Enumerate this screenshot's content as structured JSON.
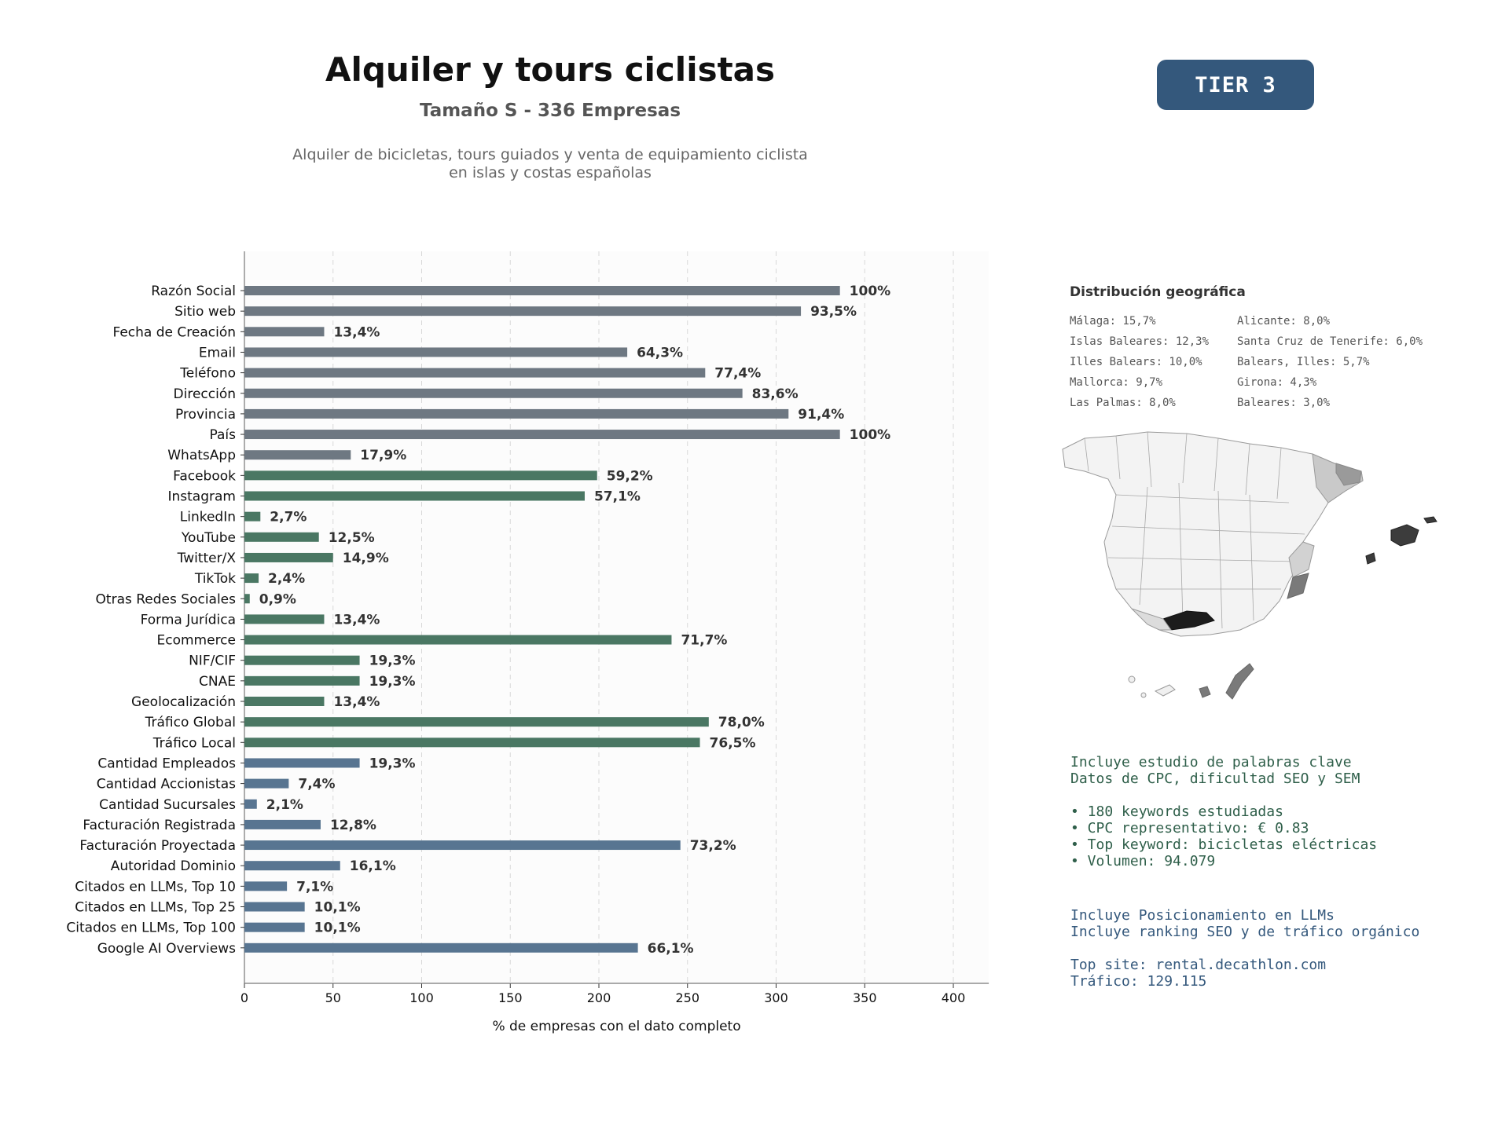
{
  "header": {
    "title": "Alquiler y tours ciclistas",
    "subtitle": "Tamaño S - 336 Empresas",
    "description_lines": [
      "Alquiler de bicicletas, tours guiados y venta de equipamiento ciclista",
      "en islas y costas españolas"
    ],
    "tier_badge": "TIER 3"
  },
  "colors": {
    "basic": "#6e7882",
    "digital": "#4a7763",
    "business": "#587591",
    "badge": "#34587c"
  },
  "chart_data": {
    "type": "bar",
    "orientation": "horizontal",
    "xlabel": "% de empresas con el dato completo",
    "xlim": [
      0,
      420
    ],
    "xticks": [
      0,
      50,
      100,
      150,
      200,
      250,
      300,
      350,
      400
    ],
    "grid": "vertical dashed",
    "categories": [
      "Razón Social",
      "Sitio web",
      "Fecha de Creación",
      "Email",
      "Teléfono",
      "Dirección",
      "Provincia",
      "País",
      "WhatsApp",
      "Facebook",
      "Instagram",
      "LinkedIn",
      "YouTube",
      "Twitter/X",
      "TikTok",
      "Otras Redes Sociales",
      "Forma Jurídica",
      "Ecommerce",
      "NIF/CIF",
      "CNAE",
      "Geolocalización",
      "Tráfico Global",
      "Tráfico Local",
      "Cantidad Empleados",
      "Cantidad Accionistas",
      "Cantidad Sucursales",
      "Facturación Registrada",
      "Facturación Proyectada",
      "Autoridad Dominio",
      "Citados en LLMs, Top 10",
      "Citados en LLMs, Top 25",
      "Citados en LLMs, Top 100",
      "Google AI Overviews"
    ],
    "values": [
      336,
      314,
      45,
      216,
      260,
      281,
      307,
      336,
      60,
      199,
      192,
      9,
      42,
      50,
      8,
      3,
      45,
      241,
      65,
      65,
      45,
      262,
      257,
      65,
      25,
      7,
      43,
      246,
      54,
      24,
      34,
      34,
      222
    ],
    "labels": [
      "100%",
      "93,5%",
      "13,4%",
      "64,3%",
      "77,4%",
      "83,6%",
      "91,4%",
      "100%",
      "17,9%",
      "59,2%",
      "57,1%",
      "2,7%",
      "12,5%",
      "14,9%",
      "2,4%",
      "0,9%",
      "13,4%",
      "71,7%",
      "19,3%",
      "19,3%",
      "13,4%",
      "78,0%",
      "76,5%",
      "19,3%",
      "7,4%",
      "2,1%",
      "12,8%",
      "73,2%",
      "16,1%",
      "7,1%",
      "10,1%",
      "10,1%",
      "66,1%"
    ],
    "groups": [
      "basic",
      "basic",
      "basic",
      "basic",
      "basic",
      "basic",
      "basic",
      "basic",
      "basic",
      "digital",
      "digital",
      "digital",
      "digital",
      "digital",
      "digital",
      "digital",
      "digital",
      "digital",
      "digital",
      "digital",
      "digital",
      "digital",
      "digital",
      "business",
      "business",
      "business",
      "business",
      "business",
      "business",
      "business",
      "business",
      "business",
      "business"
    ]
  },
  "geo": {
    "title": "Distribución geográfica",
    "items": [
      "Málaga: 15,7%",
      "Islas Baleares: 12,3%",
      "Illes Balears: 10,0%",
      "Mallorca: 9,7%",
      "Las Palmas: 8,0%",
      "Alicante: 8,0%",
      "Santa Cruz de Tenerife: 6,0%",
      "Balears, Illes: 5,7%",
      "Girona: 4,3%",
      "Baleares: 3,0%"
    ]
  },
  "keywords": {
    "lines": [
      "Incluye estudio de palabras clave",
      "Datos de CPC, dificultad SEO y SEM",
      "",
      "• 180 keywords estudiadas",
      "• CPC representativo: € 0.83",
      "• Top keyword: bicicletas eléctricas",
      "• Volumen: 94.079"
    ]
  },
  "llm": {
    "lines": [
      "Incluye Posicionamiento en LLMs",
      "Incluye ranking SEO y de tráfico orgánico",
      "",
      "Top site: rental.decathlon.com",
      "Tráfico: 129.115"
    ]
  }
}
